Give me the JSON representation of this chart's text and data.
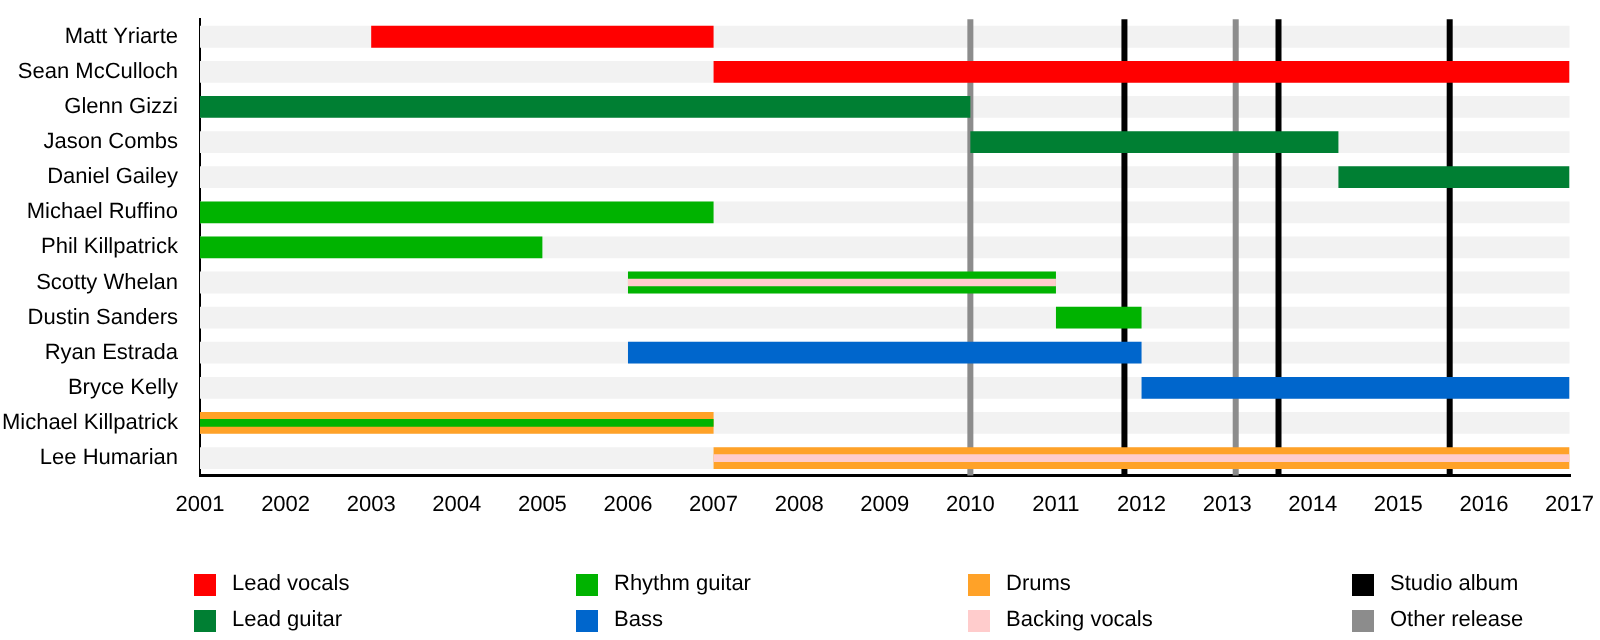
{
  "chart_data": {
    "type": "bar",
    "orientation": "horizontal",
    "categories": [
      "Matt Yriarte",
      "Sean McCulloch",
      "Glenn Gizzi",
      "Jason Combs",
      "Daniel Gailey",
      "Michael Ruffino",
      "Phil Killpatrick",
      "Scotty Whelan",
      "Dustin Sanders",
      "Ryan Estrada",
      "Bryce Kelly",
      "Michael Killpatrick",
      "Lee Humarian"
    ],
    "series": [
      {
        "name": "Lead vocals",
        "color": "#ff0000",
        "base": [
          2003,
          2007,
          null,
          null,
          null,
          null,
          null,
          null,
          null,
          null,
          null,
          null,
          null
        ],
        "values": [
          4,
          10,
          null,
          null,
          null,
          null,
          null,
          null,
          null,
          null,
          null,
          null,
          null
        ]
      },
      {
        "name": "Lead guitar",
        "color": "#007f33",
        "base": [
          null,
          null,
          2001,
          2010,
          2014.3,
          null,
          null,
          null,
          null,
          null,
          null,
          null,
          null
        ],
        "values": [
          null,
          null,
          9,
          4.3,
          2.7,
          null,
          null,
          null,
          null,
          null,
          null,
          null,
          null
        ]
      },
      {
        "name": "Rhythm guitar",
        "color": "#00b300",
        "base": [
          null,
          null,
          null,
          null,
          null,
          2001,
          2001,
          2006,
          2011,
          null,
          null,
          null,
          null
        ],
        "values": [
          null,
          null,
          null,
          null,
          null,
          6,
          4,
          5,
          1,
          null,
          null,
          null,
          null
        ]
      },
      {
        "name": "Bass",
        "color": "#0066cc",
        "base": [
          null,
          null,
          null,
          null,
          null,
          null,
          null,
          null,
          null,
          2006,
          2012,
          null,
          null
        ],
        "values": [
          null,
          null,
          null,
          null,
          null,
          null,
          null,
          null,
          null,
          6,
          5,
          null,
          null
        ]
      },
      {
        "name": "Drums",
        "color": "#ffa228",
        "base": [
          null,
          null,
          null,
          null,
          null,
          null,
          null,
          null,
          null,
          null,
          null,
          2001,
          2007
        ],
        "values": [
          null,
          null,
          null,
          null,
          null,
          null,
          null,
          null,
          null,
          null,
          null,
          6,
          10
        ]
      },
      {
        "name": "Backing vocals",
        "color": "#ffcccc",
        "base": [
          null,
          null,
          null,
          null,
          null,
          null,
          null,
          2006,
          null,
          null,
          null,
          null,
          2007
        ],
        "values": [
          null,
          null,
          null,
          null,
          null,
          null,
          null,
          5,
          null,
          null,
          null,
          null,
          10
        ]
      },
      {
        "color": "#00b300",
        "base": [
          null,
          null,
          null,
          null,
          null,
          null,
          null,
          null,
          null,
          null,
          null,
          2001,
          null
        ],
        "values": [
          null,
          null,
          null,
          null,
          null,
          null,
          null,
          null,
          null,
          null,
          null,
          6,
          null
        ]
      }
    ],
    "xlim": [
      2001,
      2017
    ],
    "xticks": [
      2001,
      2002,
      2003,
      2004,
      2005,
      2006,
      2007,
      2008,
      2009,
      2010,
      2011,
      2012,
      2013,
      2014,
      2015,
      2016,
      2017
    ],
    "ref_lines": [
      {
        "axis": "x",
        "value": 2011.8,
        "label": "Studio album",
        "color": "#000000"
      },
      {
        "axis": "x",
        "value": 2010,
        "label": "Other release",
        "color": "#8c8c8c"
      },
      {
        "axis": "x",
        "value": 2013.1,
        "color": "#8c8c8c"
      },
      {
        "axis": "x",
        "value": 2013.6,
        "color": "#000000"
      },
      {
        "axis": "x",
        "value": 2015.6,
        "color": "#000000"
      }
    ],
    "legend": "bottom",
    "grid": false
  }
}
